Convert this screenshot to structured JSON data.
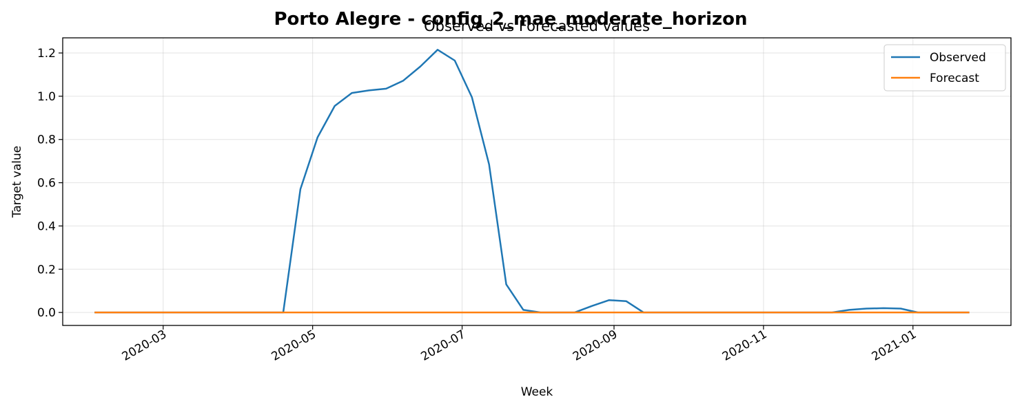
{
  "chart_data": {
    "type": "line",
    "suptitle": "Porto Alegre - config_2_mae_moderate_horizon",
    "title": "Observed vs Forecasted values",
    "xlabel": "Week",
    "ylabel": "Target value",
    "ylim": [
      -0.06,
      1.27
    ],
    "xlim": [
      "2020-01-20",
      "2021-02-10"
    ],
    "x_ticks": [
      "2020-03",
      "2020-05",
      "2020-07",
      "2020-09",
      "2020-11",
      "2021-01"
    ],
    "y_ticks": [
      "0.0",
      "0.2",
      "0.4",
      "0.6",
      "0.8",
      "1.0",
      "1.2"
    ],
    "grid": true,
    "legend_position": "top-right",
    "x": [
      "2020-02-02",
      "2020-02-09",
      "2020-02-16",
      "2020-02-23",
      "2020-03-01",
      "2020-03-08",
      "2020-03-15",
      "2020-03-22",
      "2020-03-29",
      "2020-04-05",
      "2020-04-12",
      "2020-04-19",
      "2020-04-26",
      "2020-05-03",
      "2020-05-10",
      "2020-05-17",
      "2020-05-24",
      "2020-05-31",
      "2020-06-07",
      "2020-06-14",
      "2020-06-21",
      "2020-06-28",
      "2020-07-05",
      "2020-07-12",
      "2020-07-19",
      "2020-07-26",
      "2020-08-02",
      "2020-08-09",
      "2020-08-16",
      "2020-08-23",
      "2020-08-30",
      "2020-09-06",
      "2020-09-13",
      "2020-09-20",
      "2020-09-27",
      "2020-10-04",
      "2020-10-11",
      "2020-10-18",
      "2020-10-25",
      "2020-11-01",
      "2020-11-08",
      "2020-11-15",
      "2020-11-22",
      "2020-11-29",
      "2020-12-06",
      "2020-12-13",
      "2020-12-20",
      "2020-12-27",
      "2021-01-03",
      "2021-01-10",
      "2021-01-17",
      "2021-01-24"
    ],
    "series": [
      {
        "name": "Observed",
        "color": "#1f77b4",
        "values": [
          0,
          0,
          0,
          0,
          0,
          0,
          0,
          0,
          0,
          0,
          0,
          0,
          0.57,
          0.81,
          0.955,
          1.015,
          1.027,
          1.035,
          1.072,
          1.138,
          1.215,
          1.165,
          0.995,
          0.685,
          0.13,
          0.012,
          0,
          0,
          0,
          0.03,
          0.057,
          0.052,
          0,
          0,
          0,
          0,
          0,
          0,
          0,
          0,
          0,
          0,
          0,
          0,
          0.012,
          0.018,
          0.02,
          0.018,
          0,
          0,
          0,
          0
        ]
      },
      {
        "name": "Forecast",
        "color": "#ff7f0e",
        "values": [
          0,
          0,
          0,
          0,
          0,
          0,
          0,
          0,
          0,
          0,
          0,
          0,
          0,
          0,
          0,
          0,
          0,
          0,
          0,
          0,
          0,
          0,
          0,
          0,
          0,
          0,
          0,
          0,
          0,
          0,
          0,
          0,
          0,
          0,
          0,
          0,
          0,
          0,
          0,
          0,
          0,
          0,
          0,
          0,
          0,
          0,
          0,
          0,
          0,
          0,
          0,
          0
        ]
      }
    ]
  }
}
